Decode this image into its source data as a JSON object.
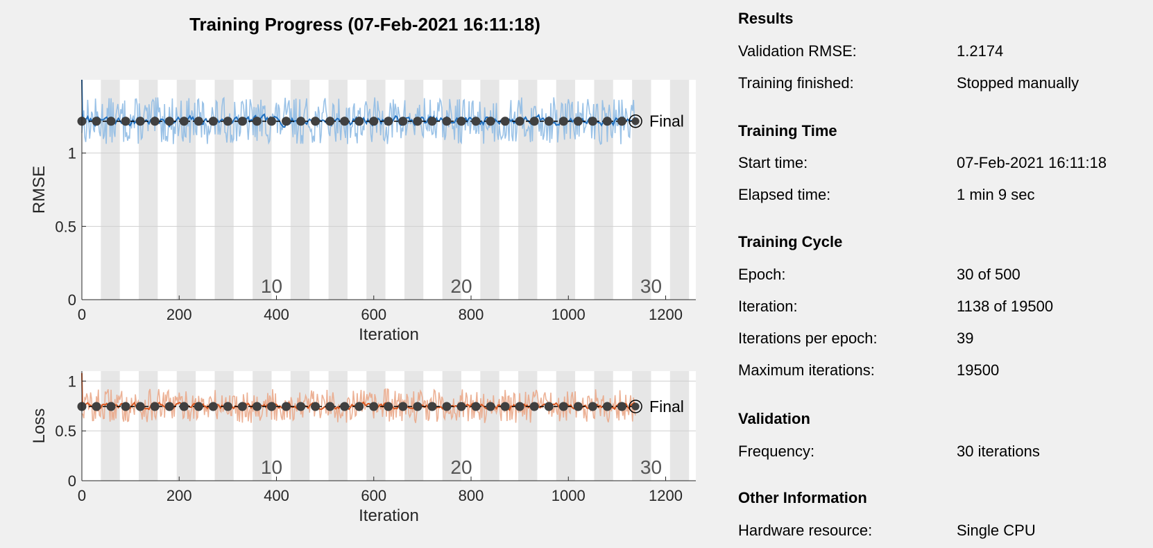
{
  "title": "Training Progress (07-Feb-2021 16:11:18)",
  "colors": {
    "rmse": "#1f6fbf",
    "rmse_light": "#8fbbe4",
    "loss": "#d6561f",
    "loss_light": "#eaa98a",
    "validation": "#404040",
    "epoch_band": "#e6e6e6"
  },
  "chart_data": [
    {
      "type": "line",
      "ylabel": "RMSE",
      "xlabel": "Iteration",
      "xlim": [
        0,
        1262
      ],
      "ylim": [
        0,
        1.5
      ],
      "xticks": [
        "0",
        "200",
        "400",
        "600",
        "800",
        "1000",
        "1200"
      ],
      "yticks": [
        "0",
        "0.5",
        "1"
      ],
      "epoch_labels": [
        "10",
        "20",
        "30"
      ],
      "iterations_per_epoch": 39,
      "final_label": "Final",
      "series": [
        {
          "role": "training_smoothed",
          "mean": 1.22,
          "spread": 0.06,
          "peak": 1.5
        },
        {
          "role": "training_raw",
          "mean": 1.22,
          "spread": 0.16
        },
        {
          "role": "validation",
          "value": 1.2174,
          "every": 30,
          "final_at": 1138
        }
      ]
    },
    {
      "type": "line",
      "ylabel": "Loss",
      "xlabel": "Iteration",
      "xlim": [
        0,
        1262
      ],
      "ylim": [
        0,
        1.1
      ],
      "xticks": [
        "0",
        "200",
        "400",
        "600",
        "800",
        "1000",
        "1200"
      ],
      "yticks": [
        "0",
        "0.5",
        "1"
      ],
      "epoch_labels": [
        "10",
        "20",
        "30"
      ],
      "iterations_per_epoch": 39,
      "final_label": "Final",
      "series": [
        {
          "role": "training_smoothed",
          "mean": 0.75,
          "spread": 0.06,
          "peak": 1.08
        },
        {
          "role": "training_raw",
          "mean": 0.75,
          "spread": 0.17
        },
        {
          "role": "validation",
          "value": 0.745,
          "every": 30,
          "final_at": 1138
        }
      ]
    }
  ],
  "panel": {
    "results": {
      "title": "Results",
      "rows": [
        {
          "label": "Validation RMSE:",
          "value": "1.2174"
        },
        {
          "label": "Training finished:",
          "value": "Stopped manually"
        }
      ]
    },
    "time": {
      "title": "Training Time",
      "rows": [
        {
          "label": "Start time:",
          "value": "07-Feb-2021 16:11:18"
        },
        {
          "label": "Elapsed time:",
          "value": "1 min 9 sec"
        }
      ]
    },
    "cycle": {
      "title": "Training Cycle",
      "rows": [
        {
          "label": "Epoch:",
          "value": "30 of 500"
        },
        {
          "label": "Iteration:",
          "value": "1138 of 19500"
        },
        {
          "label": "Iterations per epoch:",
          "value": "39"
        },
        {
          "label": "Maximum iterations:",
          "value": "19500"
        }
      ]
    },
    "validation": {
      "title": "Validation",
      "rows": [
        {
          "label": "Frequency:",
          "value": "30 iterations"
        }
      ]
    },
    "other": {
      "title": "Other Information",
      "rows": [
        {
          "label": "Hardware resource:",
          "value": "Single CPU"
        }
      ]
    }
  }
}
